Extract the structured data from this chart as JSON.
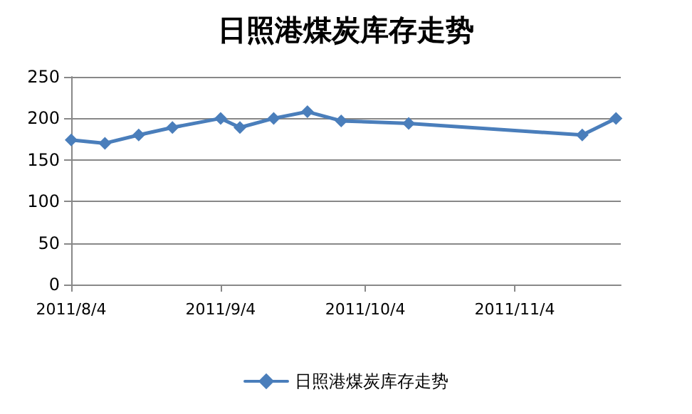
{
  "chart_data": {
    "type": "line",
    "title": "日照港煤炭库存走势",
    "x": [
      "2011-08-04",
      "2011-08-11",
      "2011-08-18",
      "2011-08-25",
      "2011-09-04",
      "2011-09-08",
      "2011-09-15",
      "2011-09-22",
      "2011-09-29",
      "2011-10-13",
      "2011-11-18",
      "2011-11-25"
    ],
    "series": [
      {
        "name": "日照港煤炭库存走势",
        "color": "#4a7ebb",
        "values": [
          174,
          170,
          180,
          189,
          200,
          189,
          200,
          208,
          197,
          194,
          180,
          200
        ]
      }
    ],
    "xlim": [
      "2011-08-04",
      "2011-11-26"
    ],
    "xticks": [
      {
        "value": "2011-08-04",
        "label": "2011/8/4"
      },
      {
        "value": "2011-09-04",
        "label": "2011/9/4"
      },
      {
        "value": "2011-10-04",
        "label": "2011/10/4"
      },
      {
        "value": "2011-11-04",
        "label": "2011/11/4"
      }
    ],
    "ylim": [
      0,
      250
    ],
    "yticks": [
      0,
      50,
      100,
      150,
      200,
      250
    ],
    "grid": "y",
    "legend": "bottom",
    "marker": "diamond",
    "line_style": "solid"
  }
}
